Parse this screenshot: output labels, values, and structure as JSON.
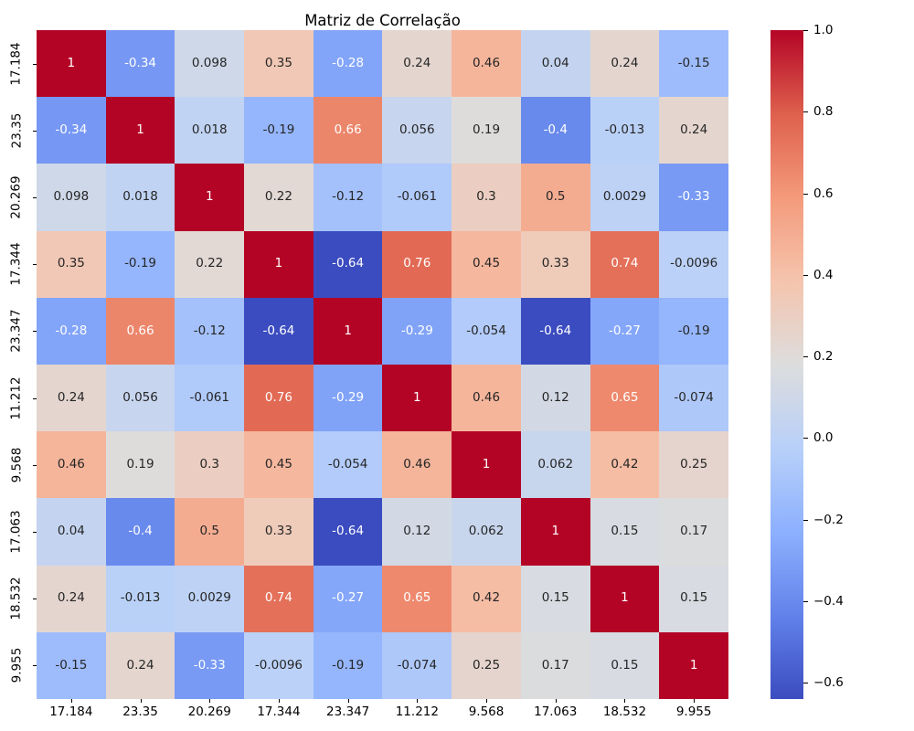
{
  "figure": {
    "background": "#ffffff"
  },
  "chart_data": {
    "type": "heatmap",
    "title": "Matriz de Correlação",
    "x_labels": [
      "17.184",
      "23.35",
      "20.269",
      "17.344",
      "23.347",
      "11.212",
      "9.568",
      "17.063",
      "18.532",
      "9.955"
    ],
    "y_labels": [
      "17.184",
      "23.35",
      "20.269",
      "17.344",
      "23.347",
      "11.212",
      "9.568",
      "17.063",
      "18.532",
      "9.955"
    ],
    "cells": [
      [
        "1",
        "-0.34",
        "0.098",
        "0.35",
        "-0.28",
        "0.24",
        "0.46",
        "0.04",
        "0.24",
        "-0.15"
      ],
      [
        "-0.34",
        "1",
        "0.018",
        "-0.19",
        "0.66",
        "0.056",
        "0.19",
        "-0.4",
        "-0.013",
        "0.24"
      ],
      [
        "0.098",
        "0.018",
        "1",
        "0.22",
        "-0.12",
        "-0.061",
        "0.3",
        "0.5",
        "0.0029",
        "-0.33"
      ],
      [
        "0.35",
        "-0.19",
        "0.22",
        "1",
        "-0.64",
        "0.76",
        "0.45",
        "0.33",
        "0.74",
        "-0.0096"
      ],
      [
        "-0.28",
        "0.66",
        "-0.12",
        "-0.64",
        "1",
        "-0.29",
        "-0.054",
        "-0.64",
        "-0.27",
        "-0.19"
      ],
      [
        "0.24",
        "0.056",
        "-0.061",
        "0.76",
        "-0.29",
        "1",
        "0.46",
        "0.12",
        "0.65",
        "-0.074"
      ],
      [
        "0.46",
        "0.19",
        "0.3",
        "0.45",
        "-0.054",
        "0.46",
        "1",
        "0.062",
        "0.42",
        "0.25"
      ],
      [
        "0.04",
        "-0.4",
        "0.5",
        "0.33",
        "-0.64",
        "0.12",
        "0.062",
        "1",
        "0.15",
        "0.17"
      ],
      [
        "0.24",
        "-0.013",
        "0.0029",
        "0.74",
        "-0.27",
        "0.65",
        "0.42",
        "0.15",
        "1",
        "0.15"
      ],
      [
        "-0.15",
        "0.24",
        "-0.33",
        "-0.0096",
        "-0.19",
        "-0.074",
        "0.25",
        "0.17",
        "0.15",
        "1"
      ]
    ],
    "vmin": -0.64,
    "vmax": 1.0,
    "colormap": "coolwarm",
    "colormap_stops": [
      {
        "t": 0,
        "color": "#3b4cc0"
      },
      {
        "t": 0.125,
        "color": "#6282ea"
      },
      {
        "t": 0.25,
        "color": "#8db0fe"
      },
      {
        "t": 0.375,
        "color": "#b8d0f9"
      },
      {
        "t": 0.5,
        "color": "#dddddd"
      },
      {
        "t": 0.625,
        "color": "#f5c4ad"
      },
      {
        "t": 0.75,
        "color": "#f49a7b"
      },
      {
        "t": 0.875,
        "color": "#de604d"
      },
      {
        "t": 1,
        "color": "#b40426"
      }
    ],
    "colorbar_ticks": [
      "1.0",
      "0.8",
      "0.6",
      "0.4",
      "0.2",
      "0.0",
      "−0.2",
      "−0.4",
      "−0.6"
    ],
    "legend_position": "right-colorbar",
    "grid": false
  },
  "colors": {
    "background": "#ffffff",
    "title_text": "#000000",
    "tick_text": "#000000",
    "annotation_dark": "#262626",
    "annotation_light": "#ffffff",
    "max_color": "#b40426",
    "min_color": "#3b4cc0"
  }
}
